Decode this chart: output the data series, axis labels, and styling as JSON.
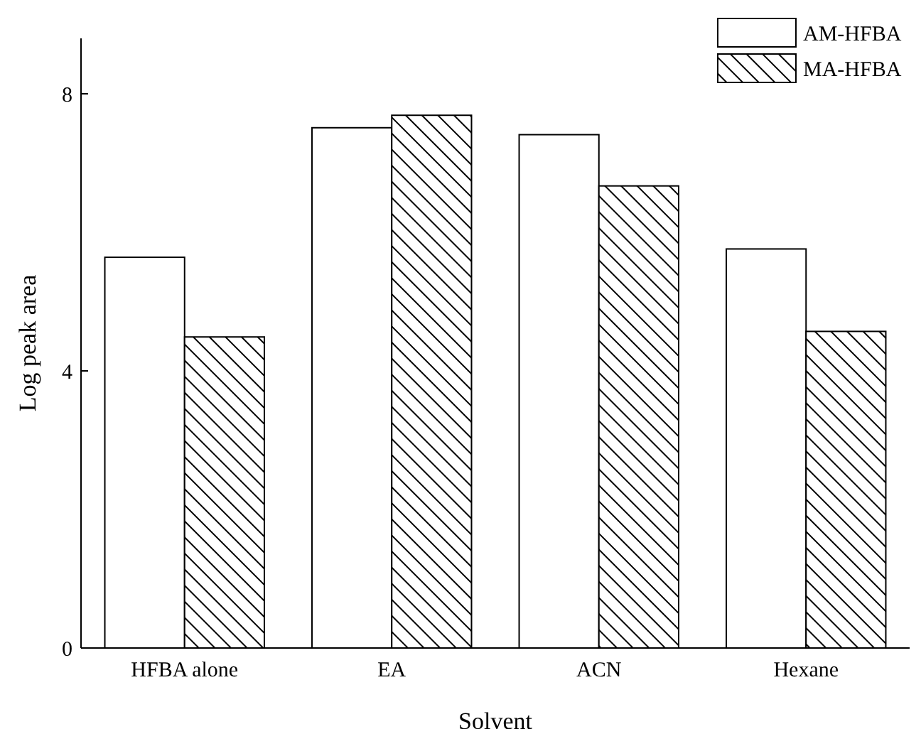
{
  "chart_data": {
    "type": "bar",
    "xlabel": "Solvent",
    "ylabel": "Log peak area",
    "categories": [
      "HFBA alone",
      "EA",
      "ACN",
      "Hexane"
    ],
    "series": [
      {
        "name": "AM-HFBA",
        "color": "#ffffff",
        "values": [
          5.64,
          7.51,
          7.41,
          5.76
        ]
      },
      {
        "name": "MA-HFBA",
        "color": "#000000",
        "values": [
          4.49,
          7.69,
          6.67,
          4.57
        ]
      }
    ],
    "ylim": [
      0,
      8.8
    ],
    "yticks": [
      0,
      4,
      8
    ],
    "legend": "top right"
  }
}
